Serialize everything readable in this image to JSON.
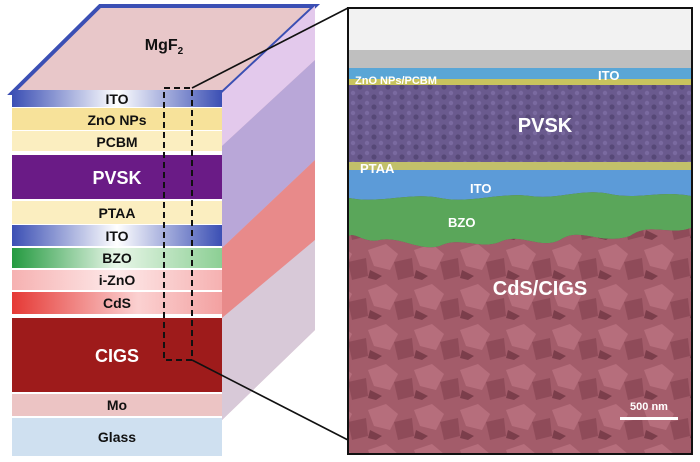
{
  "stack": {
    "top_label": "MgF",
    "top_label_sub": "2",
    "layers": [
      {
        "label": "ITO",
        "color": "#3f51b5"
      },
      {
        "label": "ZnO NPs",
        "color": "#f4d96b"
      },
      {
        "label": "PCBM",
        "color": "#f9e7a6"
      },
      {
        "label": "PVSK",
        "color": "#6a1b86"
      },
      {
        "label": "PTAA",
        "color": "#f6df8a"
      },
      {
        "label": "ITO",
        "color": "#3f51b5"
      },
      {
        "label": "BZO",
        "color": "#2e9e4a"
      },
      {
        "label": "i-ZnO",
        "color": "#f08c8c"
      },
      {
        "label": "CdS",
        "color": "#e53935"
      },
      {
        "label": "CIGS",
        "color": "#9e1b1b"
      },
      {
        "label": "Mo",
        "color": "#e8b7b7"
      },
      {
        "label": "Glass",
        "color": "#cfe0f0"
      }
    ]
  },
  "sem": {
    "labels": {
      "zno_pcbm": "ZnO NPs/PCBM",
      "ito_top": "ITO",
      "pvsk": "PVSK",
      "ptaa": "PTAA",
      "ito_mid": "ITO",
      "bzo": "BZO",
      "cigs": "CdS/CIGS",
      "scale": "500 nm"
    }
  }
}
